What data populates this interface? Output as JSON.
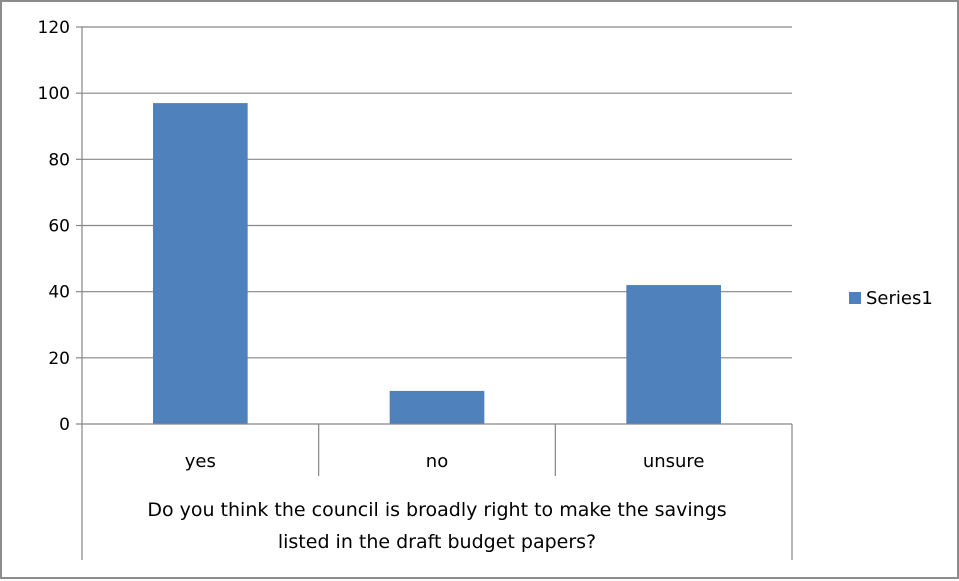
{
  "chart_data": {
    "type": "bar",
    "categories": [
      "yes",
      "no",
      "unsure"
    ],
    "series": [
      {
        "name": "Series1",
        "values": [
          97,
          10,
          42
        ]
      }
    ],
    "title": "",
    "xlabel": "Do you think the council is broadly right to make the savings listed in the draft budget papers?",
    "xlabel_lines": [
      "Do you think the council is broadly right to make the savings",
      "listed in the draft budget papers?"
    ],
    "ylabel": "",
    "ylim": [
      0,
      120
    ],
    "yticks": [
      0,
      20,
      40,
      60,
      80,
      100,
      120
    ],
    "grid": true,
    "legend_position": "right",
    "bar_color": "#4F81BD"
  }
}
